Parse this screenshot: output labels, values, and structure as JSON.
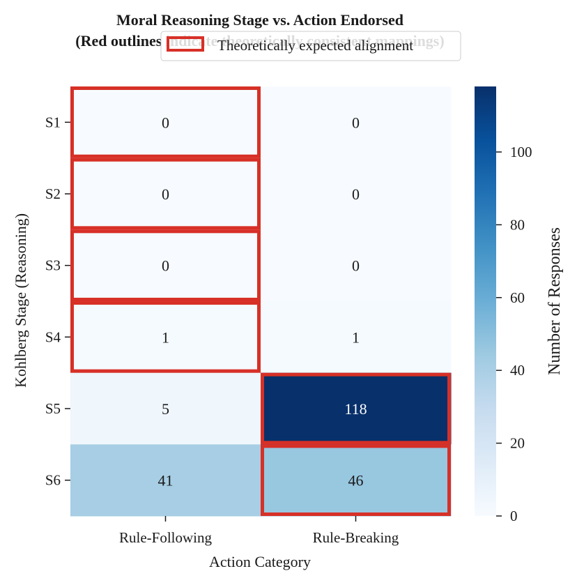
{
  "chart_data": {
    "type": "heatmap",
    "title": "Moral Reasoning Stage vs. Action Endorsed",
    "subtitle": "(Red outlines indicate theoretically consistent mappings)",
    "xlabel": "Action Category",
    "ylabel": "Kohlberg Stage (Reasoning)",
    "x_categories": [
      "Rule-Following",
      "Rule-Breaking"
    ],
    "y_categories": [
      "S1",
      "S2",
      "S3",
      "S4",
      "S5",
      "S6"
    ],
    "values": [
      [
        0,
        0
      ],
      [
        0,
        0
      ],
      [
        0,
        0
      ],
      [
        1,
        1
      ],
      [
        5,
        118
      ],
      [
        41,
        46
      ]
    ],
    "highlighted_cells": [
      [
        0,
        0
      ],
      [
        1,
        0
      ],
      [
        2,
        0
      ],
      [
        3,
        0
      ],
      [
        4,
        1
      ],
      [
        5,
        1
      ]
    ],
    "highlight_color": "#d73027",
    "legend": {
      "label": "Theoretically expected alignment",
      "placement": "upper center"
    },
    "colorbar": {
      "label": "Number of Responses",
      "colormap": "Blues",
      "min": 0,
      "max": 118,
      "ticks": [
        0,
        20,
        40,
        60,
        80,
        100
      ]
    }
  }
}
